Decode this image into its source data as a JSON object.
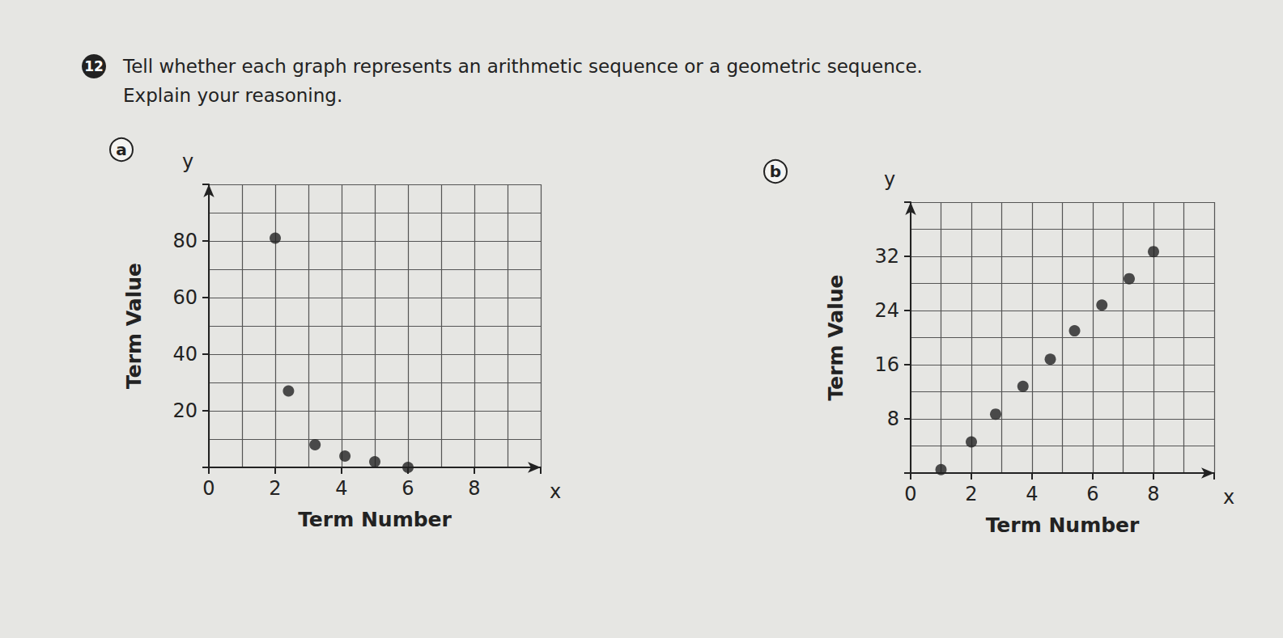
{
  "problem": {
    "number": "12",
    "text": "Tell whether each graph represents an arithmetic sequence or a geometric sequence.",
    "instruction": "Explain your reasoning."
  },
  "chart_data": [
    {
      "type": "scatter",
      "title": "a",
      "x_label": "Term Number",
      "y_label": "Term Value",
      "x_axis_mark": "x",
      "y_axis_mark": "y",
      "x": [
        2,
        2.4,
        3.2,
        4.1,
        5,
        6
      ],
      "values": [
        81,
        27,
        8,
        4,
        2,
        0
      ],
      "xlim": [
        0,
        10
      ],
      "ylim": [
        0,
        100
      ],
      "xticks": [
        0,
        2,
        4,
        6,
        8
      ],
      "yticks": [
        20,
        40,
        60,
        80
      ],
      "grid": true,
      "color": "#222222",
      "marker": "circle"
    },
    {
      "type": "scatter",
      "title": "b",
      "x_label": "Term Number",
      "y_label": "Term Value",
      "x_axis_mark": "x",
      "y_axis_mark": "y",
      "x": [
        1,
        2,
        2.8,
        3.7,
        4.6,
        5.4,
        6.3,
        7.2,
        8
      ],
      "values": [
        0.5,
        4.6,
        8.7,
        12.8,
        16.8,
        21,
        24.8,
        28.7,
        32.7
      ],
      "xlim": [
        0,
        10
      ],
      "ylim": [
        0,
        40
      ],
      "xticks": [
        0,
        2,
        4,
        6,
        8
      ],
      "yticks": [
        8,
        16,
        24,
        32
      ],
      "grid": true,
      "color": "#222222",
      "marker": "circle"
    }
  ]
}
